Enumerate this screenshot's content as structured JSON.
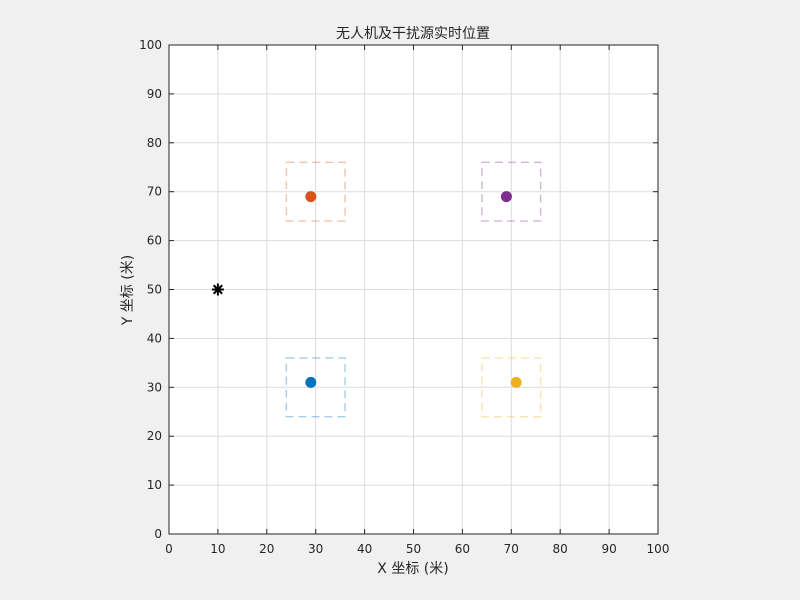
{
  "chart_data": {
    "type": "scatter",
    "title": "无人机及干扰源实时位置",
    "xlabel": "X 坐标 (米)",
    "ylabel": "Y 坐标 (米)",
    "xlim": [
      0,
      100
    ],
    "ylim": [
      0,
      100
    ],
    "xticks": [
      "0",
      "10",
      "20",
      "30",
      "40",
      "50",
      "60",
      "70",
      "80",
      "90",
      "100"
    ],
    "yticks": [
      "0",
      "10",
      "20",
      "30",
      "40",
      "50",
      "60",
      "70",
      "80",
      "90",
      "100"
    ],
    "grid": true,
    "drones": [
      {
        "x": 29,
        "y": 31,
        "color": "#0072BD",
        "box": {
          "x0": 24,
          "x1": 36,
          "y0": 24,
          "y1": 36
        }
      },
      {
        "x": 29,
        "y": 69,
        "color": "#D95319",
        "box": {
          "x0": 24,
          "x1": 36,
          "y0": 64,
          "y1": 76
        }
      },
      {
        "x": 71,
        "y": 31,
        "color": "#EDB120",
        "box": {
          "x0": 64,
          "x1": 76,
          "y0": 24,
          "y1": 36
        }
      },
      {
        "x": 69,
        "y": 69,
        "color": "#7E2F8E",
        "box": {
          "x0": 64,
          "x1": 76,
          "y0": 64,
          "y1": 76
        }
      }
    ],
    "jammer": {
      "x": 10,
      "y": 50,
      "marker": "asterisk",
      "color": "#000000"
    }
  }
}
